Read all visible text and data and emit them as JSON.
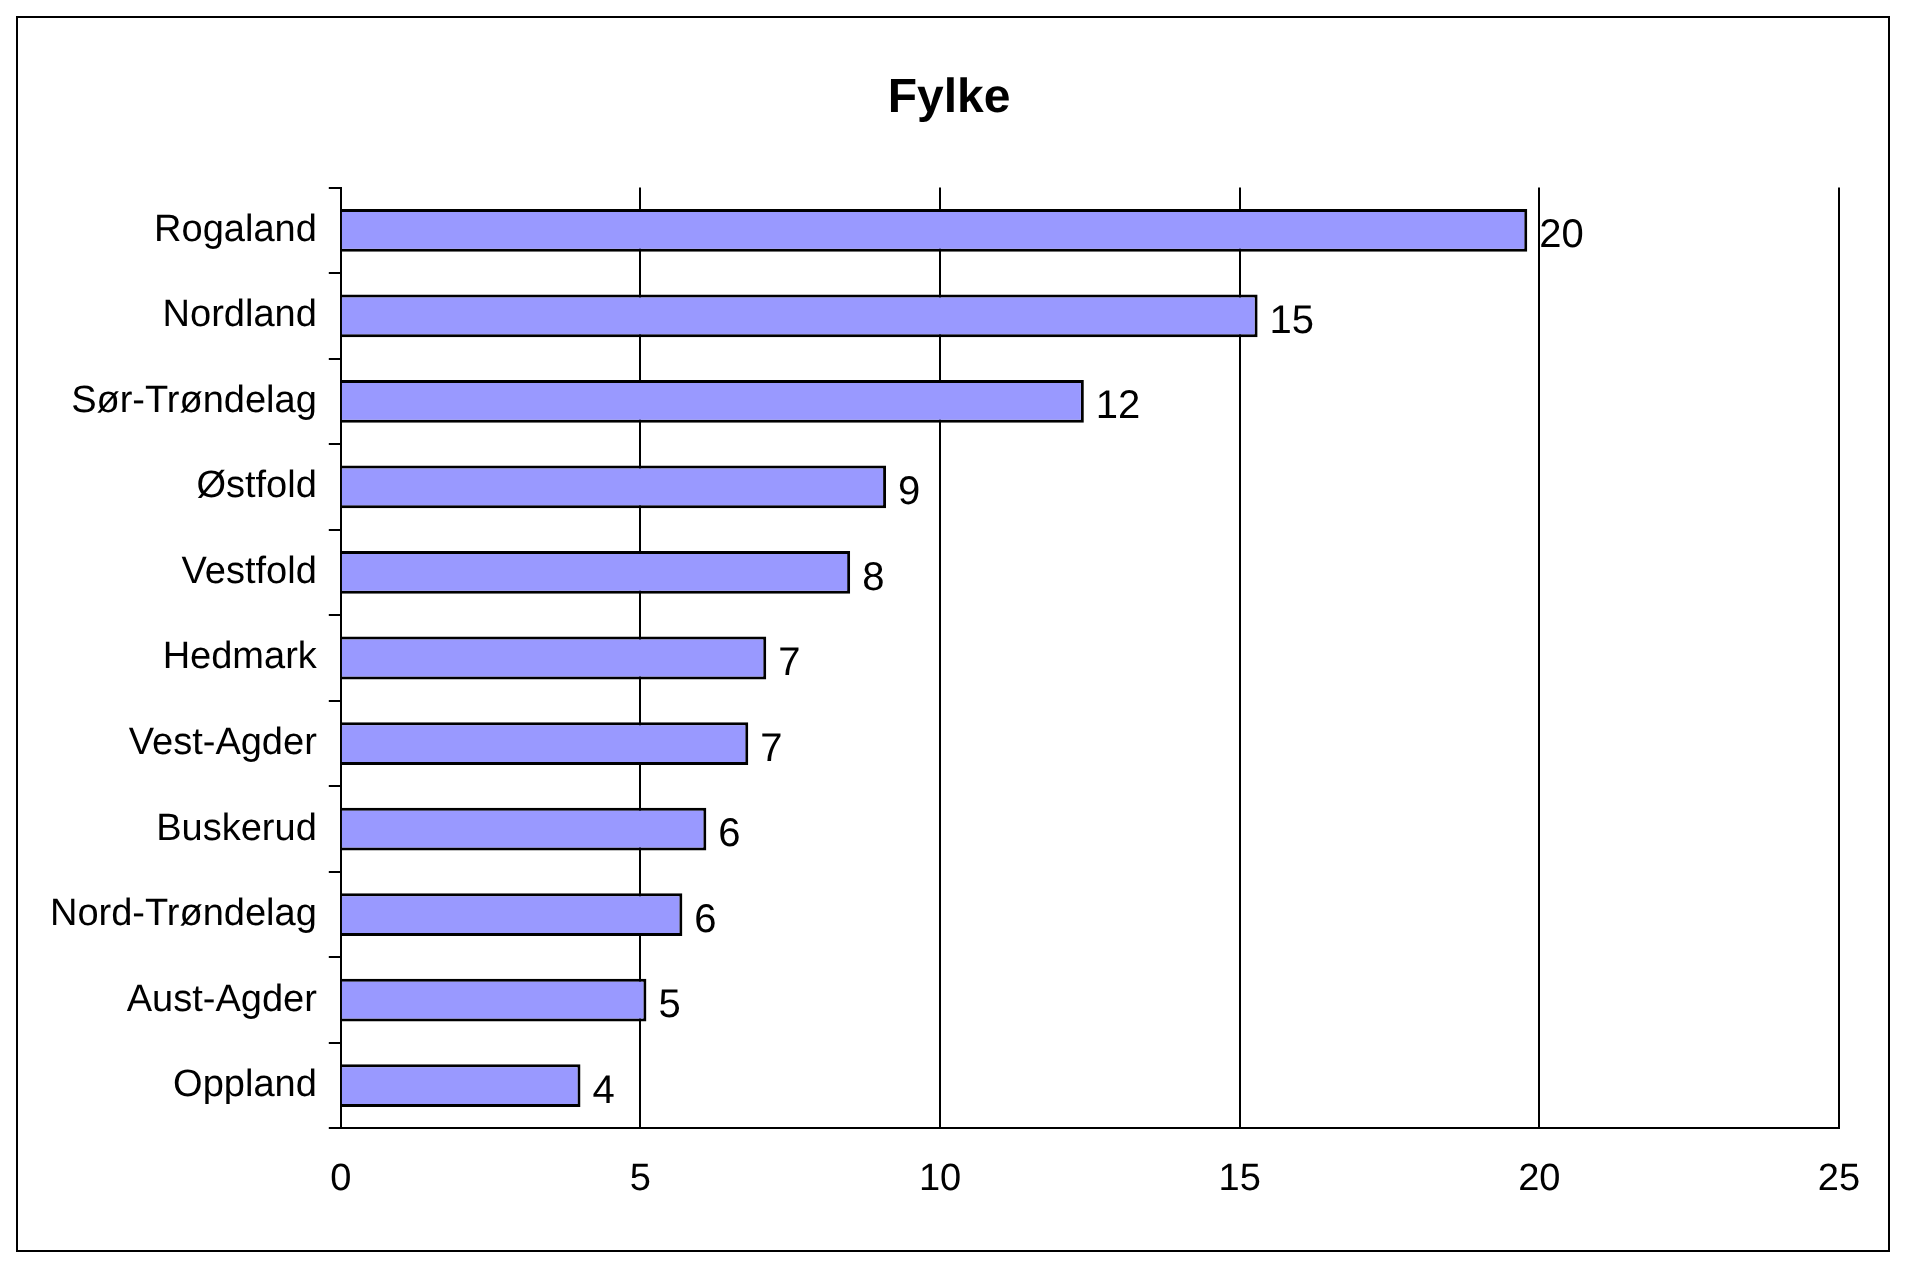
{
  "chart_data": {
    "type": "bar",
    "title": "Fylke",
    "orientation": "horizontal",
    "categories": [
      "Rogaland",
      "Nordland",
      "Sør-Trøndelag",
      "Østfold",
      "Vestfold",
      "Hedmark",
      "Vest-Agder",
      "Buskerud",
      "Nord-Trøndelag",
      "Aust-Agder",
      "Oppland"
    ],
    "values": [
      19.8,
      15.3,
      12.4,
      9.1,
      8.5,
      7.1,
      6.8,
      6.1,
      5.7,
      5.1,
      4.0
    ],
    "value_labels": [
      "20",
      "15",
      "12",
      "9",
      "8",
      "7",
      "7",
      "6",
      "6",
      "5",
      "4"
    ],
    "color": "#9999ff",
    "xlim": [
      0,
      25
    ],
    "xticks": [
      0,
      5,
      10,
      15,
      20,
      25
    ],
    "grid": "x",
    "legend": false
  }
}
